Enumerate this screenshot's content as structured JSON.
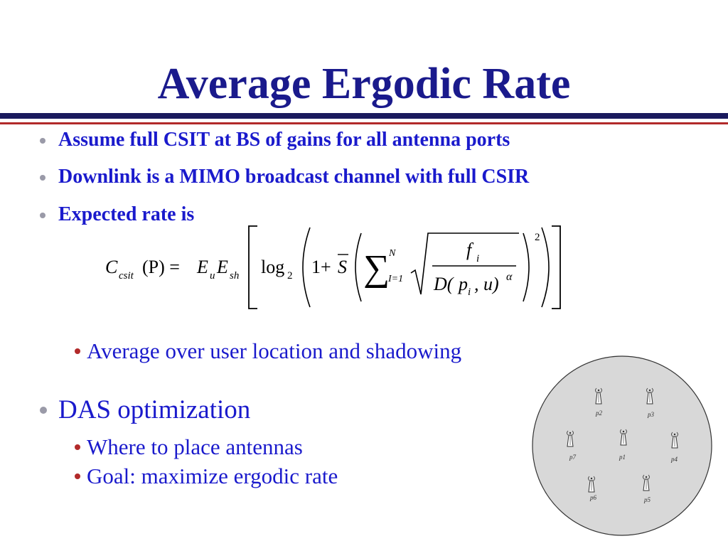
{
  "title": "Average Ergodic Rate",
  "bullets_level1": [
    "Assume full CSIT at BS of gains for all antenna ports",
    "Downlink is a MIMO broadcast channel with full CSIR",
    "Expected rate is"
  ],
  "formula": {
    "lhs_C": "C",
    "lhs_sub": "csit",
    "lhs_arg": "(P) = ",
    "E": "E",
    "E_u_sub": "u",
    "E_sh_sub": "sh",
    "log": "log",
    "log_base": "2",
    "one_plus": "1+",
    "S": "S",
    "sum_upper": "N",
    "sum_lower": "I=1",
    "numerator_f": "f",
    "numerator_sub": "i",
    "denominator": "D(",
    "denom_p": "p",
    "denom_p_sub": "i",
    "denom_rest": ", u)",
    "alpha": "α",
    "outer_power": "2"
  },
  "sub_bullet_average": "Average over user location and shadowing",
  "das_heading": "DAS optimization",
  "das_sub_bullets": [
    "Where to place antennas",
    "Goal: maximize ergodic rate"
  ],
  "diagram": {
    "antenna_labels": {
      "p1": "p1",
      "p2": "p2",
      "p3_top": "p3",
      "p4": "p4",
      "p5": "p5",
      "p6": "p6",
      "p7": "p7"
    },
    "circle_fill": "#d8d8d8"
  }
}
